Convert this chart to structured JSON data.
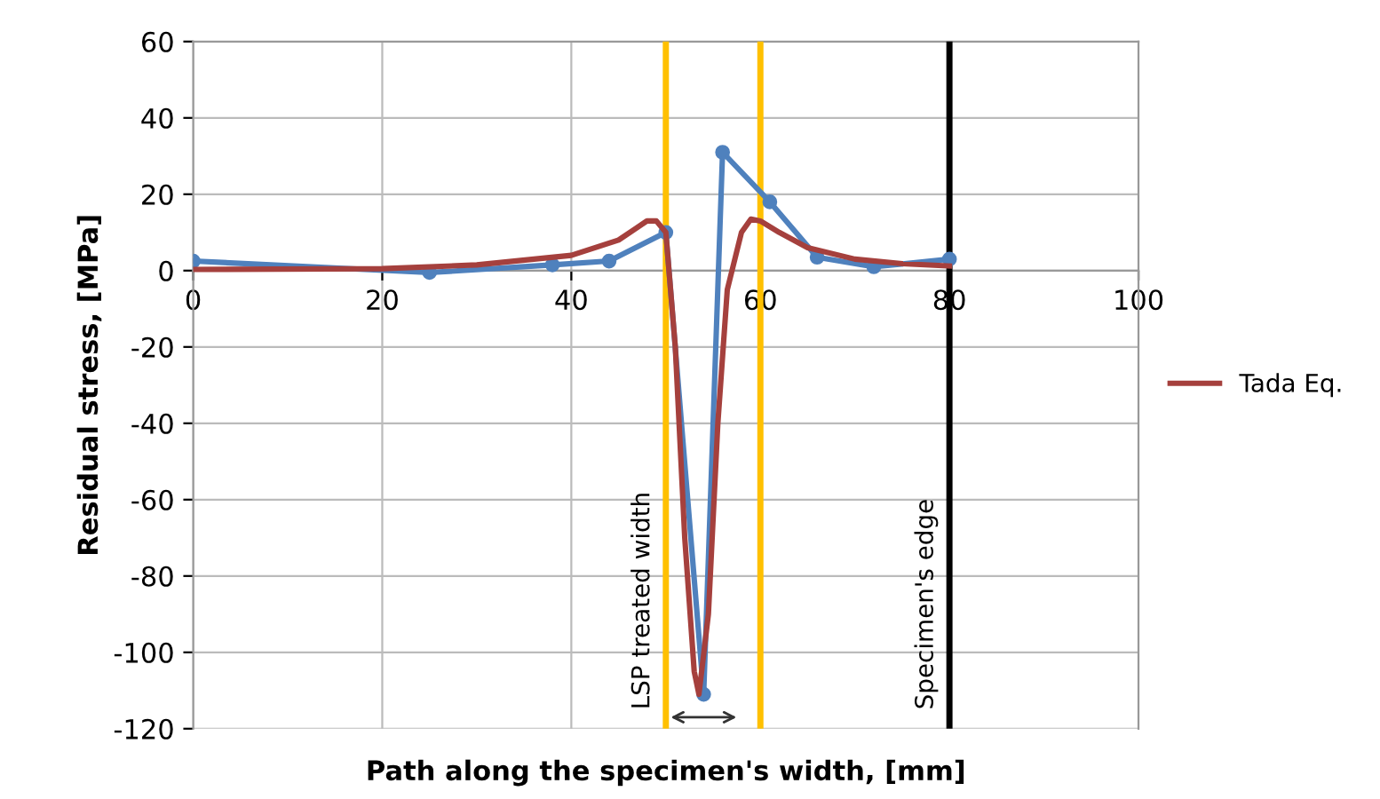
{
  "chart_data": {
    "type": "line",
    "xlabel": "Path along the specimen's width, [mm]",
    "ylabel": "Residual stress, [MPa]",
    "xlim": [
      0,
      100
    ],
    "xticks": [
      0,
      20,
      40,
      60,
      80,
      100
    ],
    "ylim": [
      -120,
      60
    ],
    "yticks": [
      -120,
      -100,
      -80,
      -60,
      -40,
      -20,
      0,
      20,
      40,
      60
    ],
    "grid": true,
    "legend": "right",
    "series": [
      {
        "color": "#4f81bd",
        "marker": "circle",
        "x": [
          0,
          25,
          38,
          44,
          50,
          54,
          56,
          61,
          66,
          72,
          80
        ],
        "values": [
          2.5,
          -0.5,
          1.5,
          2.5,
          10,
          -111,
          31,
          18,
          3.5,
          1,
          3
        ]
      },
      {
        "name": "Tada Eq.",
        "color": "#a5403d",
        "marker": "none",
        "x": [
          0,
          20,
          30,
          40,
          45,
          48,
          49,
          50,
          51,
          52,
          53,
          53.5,
          54.5,
          55.5,
          56.5,
          58,
          59,
          60,
          62,
          65,
          70,
          75,
          80
        ],
        "values": [
          0.3,
          0.5,
          1.5,
          4,
          8,
          13,
          13,
          10,
          -20,
          -70,
          -105,
          -111,
          -90,
          -40,
          -5,
          10,
          13.5,
          13,
          10,
          6,
          3,
          1.8,
          1.2
        ]
      }
    ],
    "ref_lines": [
      {
        "axis": "x",
        "value": 50,
        "color": "#ffc000",
        "label": "LSP treated width"
      },
      {
        "axis": "x",
        "value": 60,
        "color": "#ffc000"
      },
      {
        "axis": "x",
        "value": 80,
        "color": "#000000",
        "label": "Specimen's edge"
      }
    ]
  }
}
